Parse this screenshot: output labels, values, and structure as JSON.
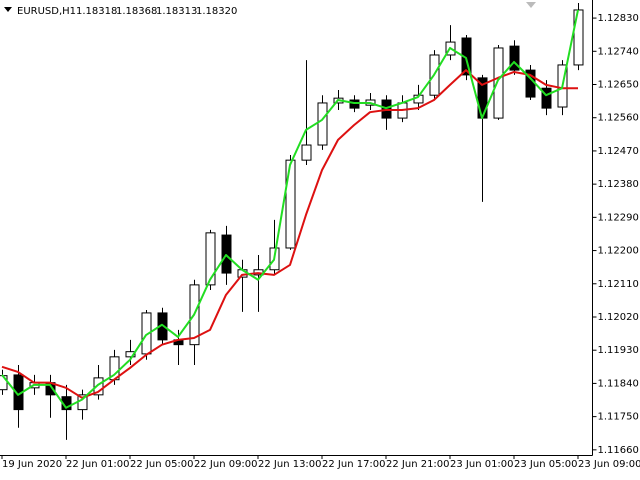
{
  "chart_data": {
    "type": "candlestick",
    "symbol": "EURUSD,H1",
    "quote": [
      "1.18318",
      "1.18368",
      "1.18313",
      "1.18320"
    ],
    "categories": [
      "19 Jun 2020",
      null,
      null,
      null,
      "22 Jun 01:00",
      null,
      null,
      null,
      "22 Jun 05:00",
      null,
      null,
      null,
      "22 Jun 09:00",
      null,
      null,
      null,
      "22 Jun 13:00",
      null,
      null,
      null,
      "22 Jun 17:00",
      null,
      null,
      null,
      "22 Jun 21:00",
      null,
      null,
      null,
      "23 Jun 01:00",
      null,
      null,
      null,
      "23 Jun 05:00",
      null,
      null,
      null,
      "23 Jun 09:00"
    ],
    "open": [
      1.11823,
      1.11863,
      1.11828,
      1.11842,
      1.11804,
      1.11769,
      1.11809,
      1.1185,
      1.11912,
      1.1192,
      1.12031,
      1.11958,
      1.11945,
      1.12107,
      1.12242,
      1.12128,
      1.12134,
      1.12148,
      1.12207,
      1.12445,
      1.12486,
      1.126,
      1.12608,
      1.12594,
      1.12608,
      1.12559,
      1.126,
      1.12621,
      1.1273,
      1.12776,
      1.12668,
      1.12559,
      1.12754,
      1.12689,
      1.1264,
      1.12589,
      1.12703
    ],
    "high": [
      1.11877,
      1.1189,
      1.11863,
      1.11863,
      1.11836,
      1.11823,
      1.1189,
      1.11931,
      1.11958,
      1.12039,
      1.12045,
      1.11985,
      1.12121,
      1.12256,
      1.12267,
      1.12175,
      1.12188,
      1.12283,
      1.12459,
      1.12716,
      1.12621,
      1.12635,
      1.12621,
      1.12627,
      1.12621,
      1.12621,
      1.12649,
      1.12743,
      1.12811,
      1.12784,
      1.12676,
      1.12757,
      1.1277,
      1.12703,
      1.12662,
      1.12716,
      1.12871
    ],
    "low": [
      1.11809,
      1.1172,
      1.11809,
      1.11747,
      1.11687,
      1.11742,
      1.11796,
      1.11836,
      1.1189,
      1.11904,
      1.11945,
      1.1189,
      1.1189,
      1.12093,
      1.12107,
      1.12034,
      1.12034,
      1.12134,
      1.12202,
      1.12432,
      1.12473,
      1.12581,
      1.12575,
      1.12581,
      1.12527,
      1.12548,
      1.12581,
      1.12608,
      1.12716,
      1.12662,
      1.12332,
      1.12554,
      1.12676,
      1.12608,
      1.12567,
      1.12567,
      1.12689
    ],
    "close": [
      1.11861,
      1.11769,
      1.11842,
      1.11809,
      1.11769,
      1.11809,
      1.11855,
      1.11912,
      1.11926,
      1.12031,
      1.11958,
      1.11945,
      1.12107,
      1.12248,
      1.12139,
      1.12148,
      1.12148,
      1.12207,
      1.12445,
      1.12486,
      1.126,
      1.12613,
      1.12586,
      1.12608,
      1.12559,
      1.126,
      1.12621,
      1.1273,
      1.12765,
      1.12676,
      1.12559,
      1.12749,
      1.12689,
      1.12616,
      1.12586,
      1.12703,
      1.12852
    ],
    "up_color": "#ffffff",
    "down_color": "#000000",
    "lines": [
      {
        "color": "#dd1111",
        "values": [
          1.11885,
          1.11871,
          1.11842,
          1.11842,
          1.11828,
          1.11801,
          1.11817,
          1.1185,
          1.11882,
          1.11917,
          1.11945,
          1.11958,
          1.11963,
          1.11985,
          1.1208,
          1.12134,
          1.12139,
          1.12134,
          1.12161,
          1.12297,
          1.12418,
          1.125,
          1.1254,
          1.12575,
          1.12581,
          1.12581,
          1.12586,
          1.12608,
          1.12649,
          1.12689,
          1.12649,
          1.12668,
          1.12684,
          1.12676,
          1.12649,
          1.1264,
          1.1264
        ]
      },
      {
        "color": "#22dd22",
        "values": [
          1.11863,
          1.11809,
          1.11836,
          1.11836,
          1.11774,
          1.11796,
          1.11836,
          1.11863,
          1.11904,
          1.11971,
          1.11999,
          1.11966,
          1.12026,
          1.12121,
          1.12188,
          1.12148,
          1.12121,
          1.12175,
          1.12432,
          1.12527,
          1.12554,
          1.12608,
          1.126,
          1.126,
          1.12586,
          1.126,
          1.12616,
          1.12676,
          1.12749,
          1.12722,
          1.12559,
          1.12662,
          1.12711,
          1.12668,
          1.12621,
          1.1264,
          1.12852
        ]
      }
    ],
    "ylim": [
      1.11646,
      1.12879
    ],
    "yticks": [
      {
        "value": 1.1283,
        "label": "1.12830"
      },
      {
        "value": 1.1274,
        "label": "1.12740"
      },
      {
        "value": 1.1265,
        "label": "1.12650"
      },
      {
        "value": 1.1256,
        "label": "1.12560"
      },
      {
        "value": 1.1247,
        "label": "1.12470"
      },
      {
        "value": 1.1238,
        "label": "1.12380"
      },
      {
        "value": 1.1229,
        "label": "1.12290"
      },
      {
        "value": 1.122,
        "label": "1.12200"
      },
      {
        "value": 1.1211,
        "label": "1.12110"
      },
      {
        "value": 1.1202,
        "label": "1.12020"
      },
      {
        "value": 1.1193,
        "label": "1.11930"
      },
      {
        "value": 1.1184,
        "label": "1.11840"
      },
      {
        "value": 1.1175,
        "label": "1.11750"
      },
      {
        "value": 1.1166,
        "label": "1.11660"
      }
    ],
    "grid": false
  }
}
